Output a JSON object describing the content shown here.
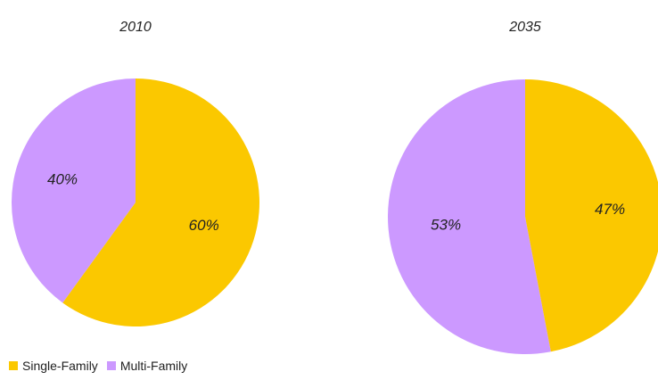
{
  "chart_data": [
    {
      "type": "pie",
      "title": "2010",
      "categories": [
        "Single-Family",
        "Multi-Family"
      ],
      "values": [
        60,
        40
      ],
      "labels": [
        "60%",
        "40%"
      ]
    },
    {
      "type": "pie",
      "title": "2035",
      "categories": [
        "Single-Family",
        "Multi-Family"
      ],
      "values": [
        47,
        53
      ],
      "labels": [
        "47%",
        "53%"
      ]
    }
  ],
  "legend": {
    "placement": "bottom-left",
    "items": [
      {
        "label": "Single-Family",
        "color": "#fbc800"
      },
      {
        "label": "Multi-Family",
        "color": "#cc99ff"
      }
    ]
  }
}
